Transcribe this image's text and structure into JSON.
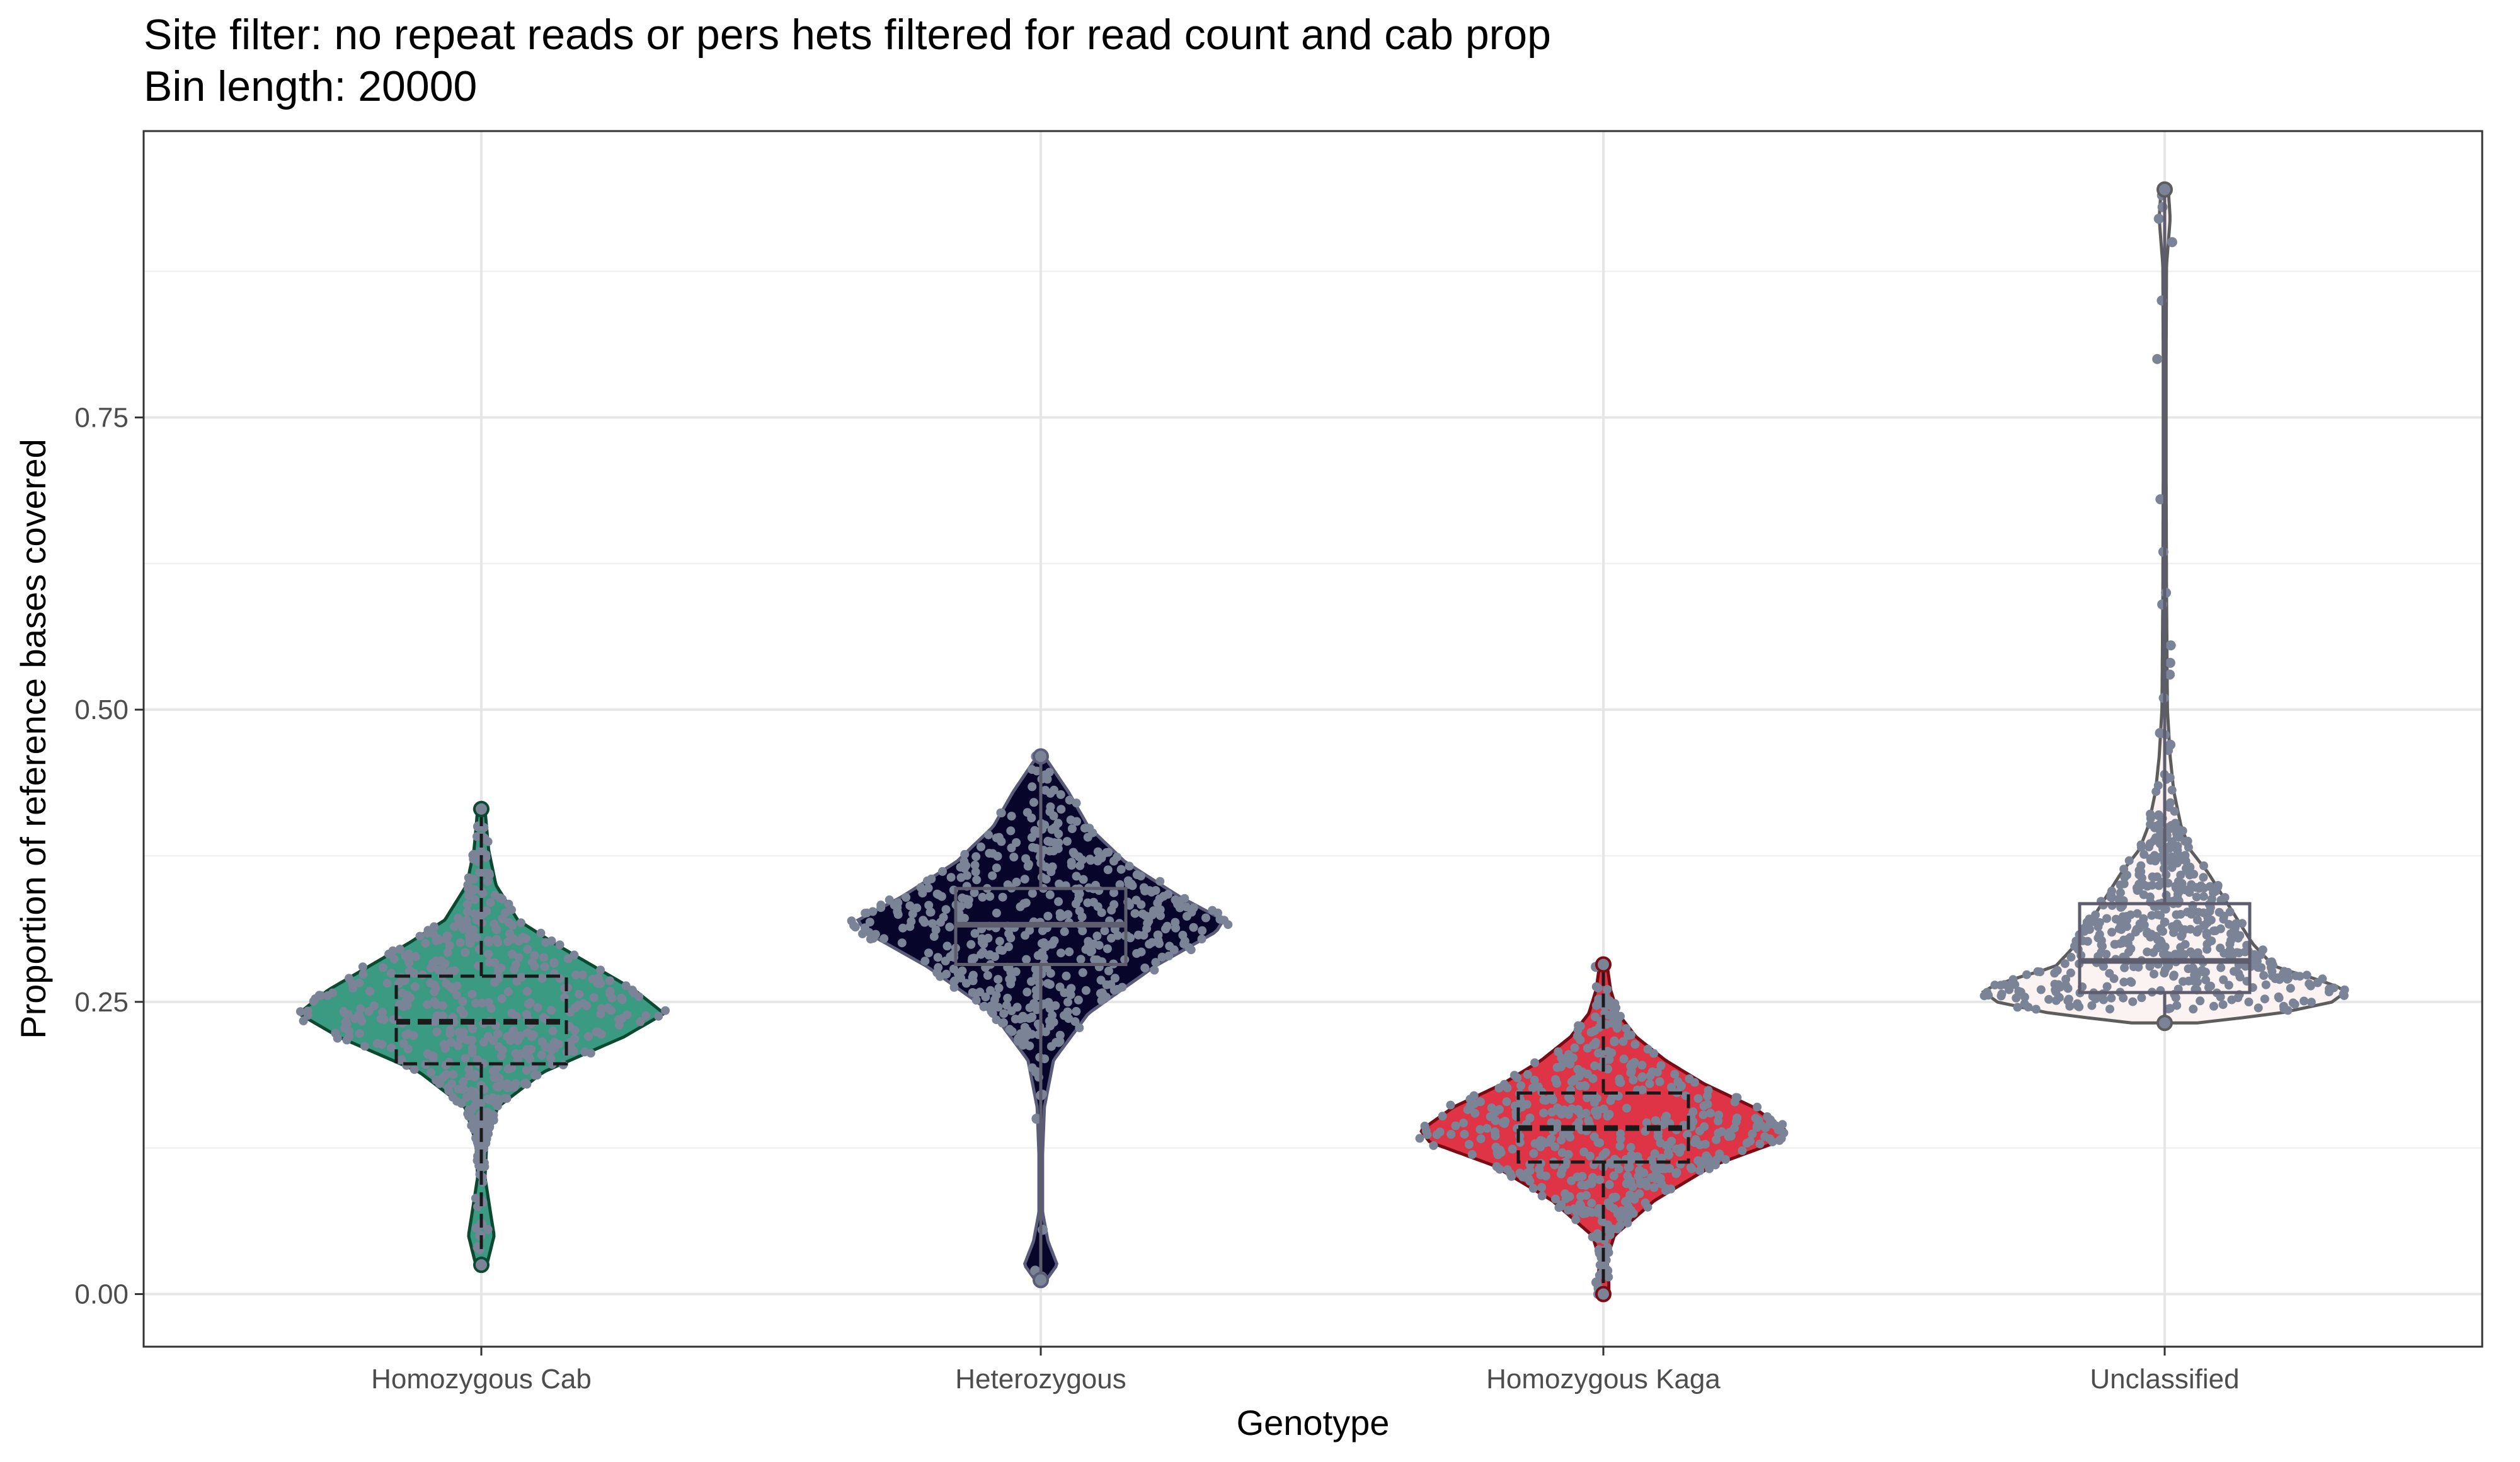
{
  "title": "Site filter: no repeat reads or pers hets filtered for read count and cab prop",
  "subtitle": "Bin length: 20000",
  "chart_data": {
    "type": "violin",
    "xlabel": "Genotype",
    "ylabel": "Proportion of reference bases covered",
    "ylim": [
      -0.045,
      0.995
    ],
    "yticks": [
      0.0,
      0.25,
      0.5,
      0.75
    ],
    "ytick_labels": [
      "0.00",
      "0.25",
      "0.50",
      "0.75"
    ],
    "grid": true,
    "legend": "none",
    "point_color": "#7b8497",
    "categories": [
      "Homozygous Cab",
      "Heterozygous",
      "Homozygous Kaga",
      "Unclassified"
    ],
    "series": [
      {
        "category": "Homozygous Cab",
        "fill": "#3a9a82",
        "stroke": "#0b4a30",
        "box_line": "dashed",
        "min": 0.025,
        "q1": 0.197,
        "median": 0.233,
        "q3": 0.272,
        "max": 0.415,
        "density": [
          [
            0.025,
            0.03
          ],
          [
            0.05,
            0.07
          ],
          [
            0.08,
            0.04
          ],
          [
            0.1,
            0.02
          ],
          [
            0.13,
            0.03
          ],
          [
            0.16,
            0.09
          ],
          [
            0.19,
            0.34
          ],
          [
            0.22,
            0.78
          ],
          [
            0.24,
            1.0
          ],
          [
            0.26,
            0.84
          ],
          [
            0.28,
            0.62
          ],
          [
            0.3,
            0.4
          ],
          [
            0.32,
            0.2
          ],
          [
            0.35,
            0.08
          ],
          [
            0.38,
            0.04
          ],
          [
            0.415,
            0.02
          ]
        ],
        "outliers": [
          0.025,
          0.04,
          0.05,
          0.06,
          0.08,
          0.39,
          0.4,
          0.415
        ]
      },
      {
        "category": "Heterozygous",
        "fill": "#07062a",
        "stroke": "#5a5c7a",
        "box_line": "solid",
        "min": 0.012,
        "q1": 0.282,
        "median": 0.316,
        "q3": 0.347,
        "max": 0.46,
        "density": [
          [
            0.012,
            0.03
          ],
          [
            0.025,
            0.09
          ],
          [
            0.045,
            0.04
          ],
          [
            0.07,
            0.01
          ],
          [
            0.12,
            0.01
          ],
          [
            0.16,
            0.02
          ],
          [
            0.2,
            0.07
          ],
          [
            0.24,
            0.26
          ],
          [
            0.28,
            0.62
          ],
          [
            0.31,
            0.96
          ],
          [
            0.32,
            1.0
          ],
          [
            0.34,
            0.76
          ],
          [
            0.37,
            0.46
          ],
          [
            0.4,
            0.26
          ],
          [
            0.43,
            0.15
          ],
          [
            0.46,
            0.02
          ]
        ],
        "outliers": [
          0.015,
          0.02,
          0.055,
          0.15,
          0.17,
          0.19,
          0.46
        ]
      },
      {
        "category": "Homozygous Kaga",
        "fill": "#de3445",
        "stroke": "#7a0a14",
        "box_line": "dashed",
        "min": 0.0,
        "q1": 0.113,
        "median": 0.142,
        "q3": 0.172,
        "max": 0.282,
        "density": [
          [
            0.0,
            0.03
          ],
          [
            0.01,
            0.03
          ],
          [
            0.03,
            0.02
          ],
          [
            0.05,
            0.06
          ],
          [
            0.08,
            0.28
          ],
          [
            0.11,
            0.6
          ],
          [
            0.13,
            0.95
          ],
          [
            0.14,
            1.0
          ],
          [
            0.16,
            0.82
          ],
          [
            0.18,
            0.55
          ],
          [
            0.2,
            0.34
          ],
          [
            0.22,
            0.18
          ],
          [
            0.24,
            0.08
          ],
          [
            0.26,
            0.04
          ],
          [
            0.282,
            0.02
          ]
        ],
        "outliers": [
          0.0,
          0.005,
          0.01,
          0.02,
          0.28
        ]
      },
      {
        "category": "Unclassified",
        "fill": "#fbf3f1",
        "stroke": "#5d5d5d",
        "box_line": "solid",
        "min": 0.232,
        "q1": 0.258,
        "median": 0.285,
        "q3": 0.334,
        "max": 0.945,
        "density": [
          [
            0.232,
            0.18
          ],
          [
            0.24,
            0.62
          ],
          [
            0.25,
            0.92
          ],
          [
            0.26,
            1.0
          ],
          [
            0.27,
            0.82
          ],
          [
            0.28,
            0.6
          ],
          [
            0.3,
            0.48
          ],
          [
            0.33,
            0.36
          ],
          [
            0.36,
            0.24
          ],
          [
            0.38,
            0.14
          ],
          [
            0.4,
            0.09
          ],
          [
            0.43,
            0.05
          ],
          [
            0.46,
            0.03
          ],
          [
            0.5,
            0.015
          ],
          [
            0.6,
            0.01
          ],
          [
            0.7,
            0.008
          ],
          [
            0.8,
            0.008
          ],
          [
            0.88,
            0.01
          ],
          [
            0.92,
            0.03
          ],
          [
            0.945,
            0.02
          ]
        ],
        "outliers": [
          0.47,
          0.48,
          0.51,
          0.53,
          0.54,
          0.555,
          0.59,
          0.6,
          0.635,
          0.68,
          0.8,
          0.85,
          0.9,
          0.92,
          0.93,
          0.94
        ]
      }
    ]
  }
}
